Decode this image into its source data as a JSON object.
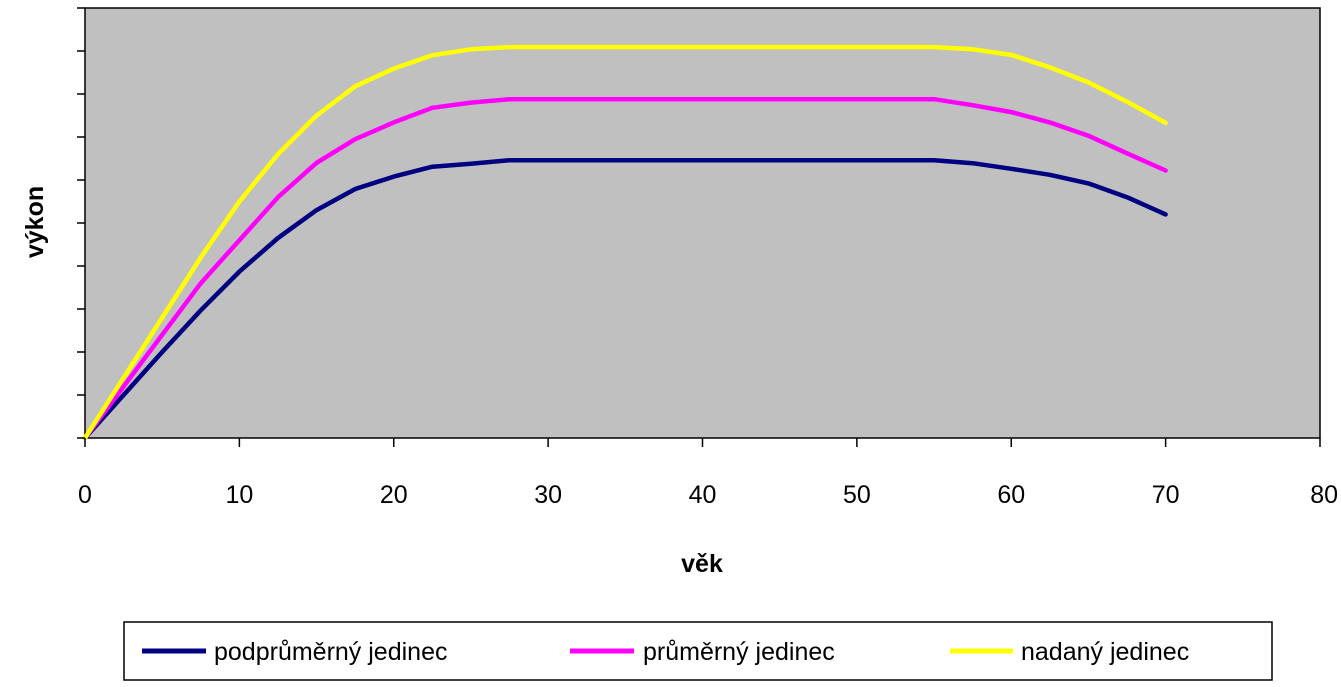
{
  "chart_data": {
    "type": "line",
    "xlabel": "věk",
    "ylabel": "výkon",
    "xlim": [
      0,
      80
    ],
    "ylim": [
      0,
      100
    ],
    "x_ticks": [
      "0",
      "10",
      "20",
      "30",
      "40",
      "50",
      "60",
      "70",
      "80"
    ],
    "y_ticks_shown": false,
    "grid": false,
    "plot_background": "#c0c0c0",
    "legend_position": "bottom",
    "x": [
      0,
      2.5,
      5,
      7.5,
      10,
      12.5,
      15,
      17.5,
      20,
      22.5,
      25,
      27.5,
      30,
      35,
      40,
      45,
      50,
      55,
      57.5,
      60,
      62.5,
      65,
      67.5,
      70
    ],
    "series": [
      {
        "name": "podprůměrný jedinec",
        "color": "#000080",
        "values": [
          0,
          10,
          20,
          29.7,
          38.7,
          46.5,
          53,
          57.9,
          60.8,
          63.1,
          63.8,
          64.6,
          64.6,
          64.6,
          64.6,
          64.6,
          64.6,
          64.6,
          63.9,
          62.6,
          61.2,
          59.2,
          56,
          52
        ]
      },
      {
        "name": "průměrný jedinec",
        "color": "#ff00ff",
        "values": [
          0,
          12,
          24,
          36,
          46,
          56,
          64,
          69.5,
          73.4,
          76.8,
          78,
          78.8,
          78.8,
          78.8,
          78.8,
          78.8,
          78.8,
          78.8,
          77.4,
          75.8,
          73.4,
          70.3,
          66.2,
          62.2
        ]
      },
      {
        "name": "nadaný jedinec",
        "color": "#ffff00",
        "values": [
          0,
          14,
          28,
          42,
          55,
          66,
          75,
          81.8,
          85.9,
          89,
          90.4,
          90.9,
          90.9,
          90.9,
          90.9,
          90.9,
          90.9,
          90.9,
          90.4,
          89.1,
          86.2,
          82.7,
          78.2,
          73.3
        ]
      }
    ]
  }
}
